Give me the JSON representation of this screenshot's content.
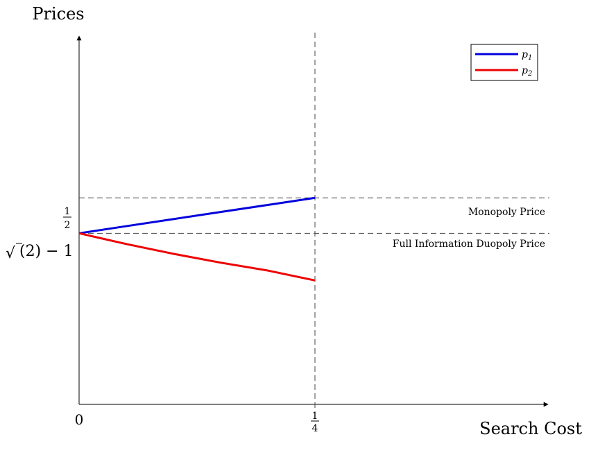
{
  "chart_data": {
    "type": "line",
    "title": "",
    "xlabel": "Search Cost",
    "ylabel": "Prices",
    "xlim": [
      0,
      0.5
    ],
    "ylim": [
      0,
      0.9
    ],
    "x_ticks": [
      {
        "value": 0,
        "label": "0"
      },
      {
        "value": 0.25,
        "num": "1",
        "den": "4"
      }
    ],
    "y_ticks": [
      {
        "value": 0.5,
        "num": "1",
        "den": "2"
      },
      {
        "value": 0.4142,
        "label": "√(2) − 1",
        "label_sqrt": "√",
        "label_rest": "(2) − 1"
      }
    ],
    "reference_lines": [
      {
        "orientation": "horizontal",
        "value": 0.5,
        "label": "Monopoly Price"
      },
      {
        "orientation": "horizontal",
        "value": 0.4142,
        "label": "Full Information Duopoly Price"
      },
      {
        "orientation": "vertical",
        "value": 0.25,
        "label": ""
      }
    ],
    "series": [
      {
        "name": "p1",
        "label_base": "p",
        "label_sub": "1",
        "color": "#0000dd",
        "x": [
          0,
          0.05,
          0.1,
          0.15,
          0.2,
          0.25
        ],
        "y": [
          0.4142,
          0.4314,
          0.4485,
          0.4657,
          0.4828,
          0.5
        ]
      },
      {
        "name": "p2",
        "label_base": "p",
        "label_sub": "2",
        "color": "#ee0000",
        "x": [
          0,
          0.05,
          0.1,
          0.15,
          0.2,
          0.25
        ],
        "y": [
          0.4142,
          0.3882,
          0.3645,
          0.3431,
          0.324,
          0.3
        ]
      }
    ],
    "legend_position": "top-right",
    "grid": false
  }
}
